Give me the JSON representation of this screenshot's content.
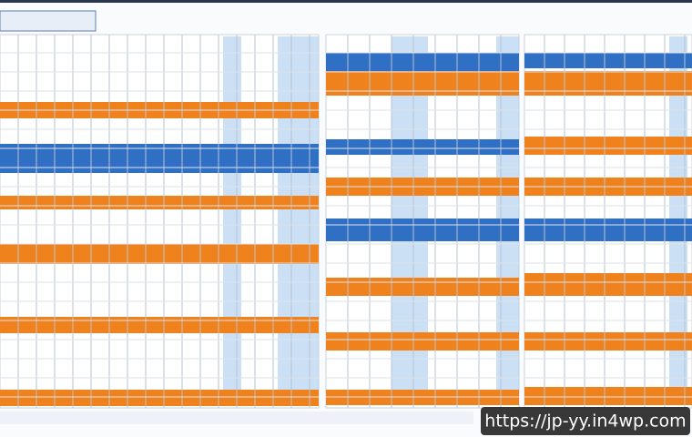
{
  "watermark": {
    "text": "https://jp-yy.in4wp.com"
  }
}
